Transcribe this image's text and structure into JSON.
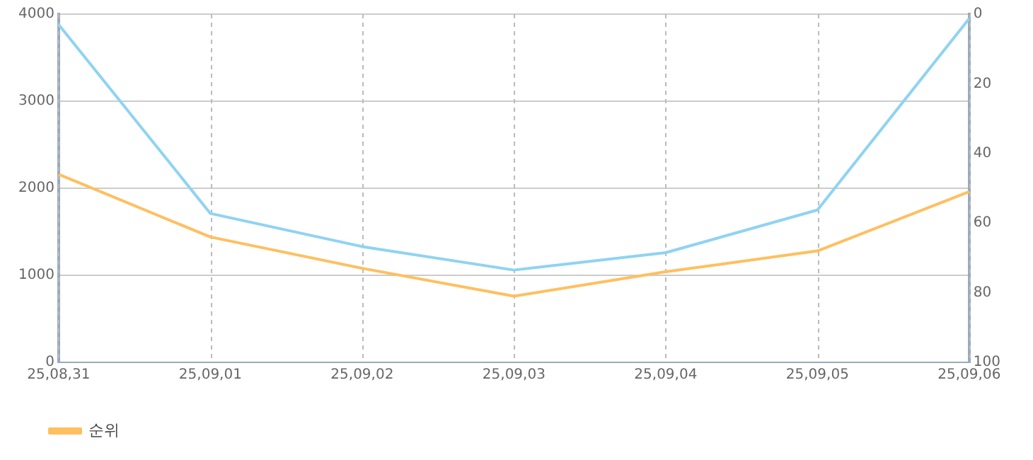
{
  "chart_data": {
    "type": "line",
    "categories": [
      "25,08,31",
      "25,09,01",
      "25,09,02",
      "25,09,03",
      "25,09,04",
      "25,09,05",
      "25,09,06"
    ],
    "series": [
      {
        "color": "#8fd3f2",
        "values": [
          3880,
          1710,
          1330,
          1060,
          1260,
          1750,
          3950
        ]
      },
      {
        "name": "순위",
        "color": "#ffbf5f",
        "axis": "y2",
        "values": [
          46,
          64,
          73,
          81,
          74,
          68,
          51
        ]
      }
    ],
    "ylim": [
      0,
      4000
    ],
    "yticks": [
      0,
      1000,
      2000,
      3000,
      4000
    ],
    "y2lim": [
      100,
      0
    ],
    "y2ticks": [
      0,
      20,
      40,
      60,
      80,
      100
    ],
    "grid": true,
    "legend": "bottom left",
    "marker": "none",
    "line_style": "solid"
  }
}
